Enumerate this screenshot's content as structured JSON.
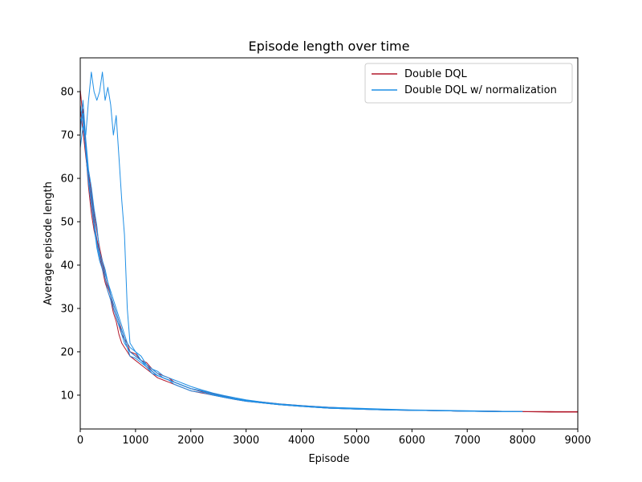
{
  "chart_data": {
    "type": "line",
    "title": "Episode length over time",
    "xlabel": "Episode",
    "ylabel": "Average episode length",
    "xlim": [
      0,
      9000
    ],
    "ylim": [
      2.2,
      87.8
    ],
    "xticks": [
      0,
      1000,
      2000,
      3000,
      4000,
      5000,
      6000,
      7000,
      8000,
      9000
    ],
    "yticks": [
      10,
      20,
      30,
      40,
      50,
      60,
      70,
      80
    ],
    "grid": false,
    "legend_position": "top-right",
    "series": [
      {
        "name": "Double DQL",
        "color": "#b2182b",
        "runs": [
          {
            "x": [
              0,
              50,
              100,
              150,
              200,
              250,
              300,
              350,
              400,
              450,
              500,
              550,
              600,
              650,
              700,
              750,
              800,
              850,
              900,
              1000,
              1100,
              1200,
              1300,
              1400,
              1500,
              1600,
              1700,
              1800,
              1900,
              2000,
              2200,
              2400,
              2600,
              2800,
              3000,
              3300,
              3600,
              4000,
              4500,
              5000,
              5500,
              6000,
              6500,
              7000,
              7500,
              8000,
              8500,
              9000
            ],
            "y": [
              80.5,
              74,
              66,
              58,
              52,
              48,
              45,
              42,
              39,
              36,
              34,
              32,
              29,
              27,
              24,
              22,
              21,
              20,
              19,
              18,
              17,
              16,
              15,
              14,
              13.5,
              13,
              12.5,
              12,
              11.5,
              11,
              10.5,
              10,
              9.5,
              9,
              8.6,
              8.2,
              7.8,
              7.4,
              7,
              6.8,
              6.6,
              6.5,
              6.4,
              6.3,
              6.2,
              6.2,
              6.1,
              6.1
            ]
          },
          {
            "x": [
              0,
              50,
              100,
              150,
              200,
              250,
              300,
              350,
              400,
              450,
              500,
              550,
              600,
              650,
              700,
              750,
              800,
              850,
              900,
              1000,
              1100,
              1200,
              1300,
              1400,
              1500,
              1600,
              1700,
              1800,
              1900,
              2000,
              2200,
              2400,
              2600,
              2800,
              3000,
              3300,
              3600,
              4000,
              4500,
              5000,
              5500,
              6000,
              6500,
              7000,
              7500,
              8000,
              8500,
              9000
            ],
            "y": [
              76,
              71,
              65,
              60,
              55,
              50,
              46,
              43,
              40,
              37,
              35,
              33,
              30,
              28,
              26,
              24,
              23,
              21,
              20,
              19,
              18,
              17,
              15.5,
              14.5,
              14,
              13.5,
              13,
              12.5,
              12,
              11.5,
              10.8,
              10.2,
              9.6,
              9.1,
              8.7,
              8.3,
              7.9,
              7.5,
              7.1,
              6.9,
              6.7,
              6.5,
              6.4,
              6.3,
              6.3,
              6.2,
              6.2,
              6.1
            ]
          },
          {
            "x": [
              0,
              50,
              100,
              150,
              200,
              250,
              300,
              350,
              400,
              450,
              500,
              550,
              600,
              650,
              700,
              750,
              800,
              850,
              900,
              1000,
              1100,
              1200,
              1300,
              1400,
              1500,
              1600,
              1700,
              1800,
              1900,
              2000,
              2200,
              2400,
              2600,
              2800,
              3000,
              3300,
              3600,
              4000,
              4500,
              5000,
              5500,
              6000,
              6500,
              7000,
              7500,
              8000,
              8500,
              9000
            ],
            "y": [
              72,
              76,
              68,
              61,
              57,
              52,
              48,
              44,
              41,
              38,
              36,
              33,
              31,
              29,
              27,
              25,
              23,
              22,
              20,
              19.5,
              18,
              17.5,
              16,
              15,
              14.5,
              14,
              13,
              12.5,
              12,
              11.5,
              11,
              10.4,
              9.8,
              9.2,
              8.8,
              8.4,
              8,
              7.6,
              7.2,
              6.9,
              6.7,
              6.5,
              6.4,
              6.3,
              6.3,
              6.2,
              6.2,
              6.2
            ]
          }
        ]
      },
      {
        "name": "Double DQL w/ normalization",
        "color": "#1f8fe5",
        "runs": [
          {
            "x": [
              0,
              50,
              100,
              150,
              200,
              250,
              300,
              350,
              400,
              450,
              500,
              550,
              600,
              650,
              700,
              750,
              800,
              850,
              900,
              1000,
              1100,
              1200,
              1300,
              1400,
              1500,
              1600,
              1700,
              1800,
              1900,
              2000,
              2200,
              2400,
              2600,
              2800,
              3000,
              3300,
              3600,
              4000,
              4500,
              5000,
              5500,
              6000,
              6500,
              7000,
              7500,
              8000
            ],
            "y": [
              67,
              72,
              70,
              78,
              84.5,
              80,
              78,
              80,
              84.5,
              78,
              81,
              77,
              70,
              74.5,
              65,
              55,
              47,
              30,
              22,
              20,
              18,
              17,
              16,
              15,
              14,
              13.5,
              13,
              12.5,
              12,
              11.5,
              11,
              10.3,
              9.7,
              9.2,
              8.8,
              8.3,
              7.9,
              7.5,
              7.1,
              6.9,
              6.7,
              6.5,
              6.4,
              6.3,
              6.3,
              6.2
            ]
          },
          {
            "x": [
              0,
              50,
              100,
              150,
              200,
              250,
              300,
              350,
              400,
              450,
              500,
              550,
              600,
              650,
              700,
              750,
              800,
              850,
              900,
              1000,
              1100,
              1200,
              1300,
              1400,
              1500,
              1600,
              1700,
              1800,
              1900,
              2000,
              2200,
              2400,
              2600,
              2800,
              3000,
              3300,
              3600,
              4000,
              4500,
              5000,
              5500,
              6000,
              6500,
              7000,
              7500,
              8000
            ],
            "y": [
              77,
              73,
              67,
              60,
              56,
              51,
              45,
              42,
              40,
              38,
              36,
              33,
              31,
              29,
              27,
              24,
              22,
              21,
              19,
              18.5,
              17.5,
              16.5,
              15.5,
              14.5,
              14,
              13.5,
              13,
              12.5,
              12,
              11.5,
              10.9,
              10.2,
              9.6,
              9.1,
              8.7,
              8.2,
              7.8,
              7.4,
              7,
              6.8,
              6.6,
              6.5,
              6.4,
              6.3,
              6.2,
              6.2
            ]
          },
          {
            "x": [
              0,
              50,
              100,
              150,
              200,
              250,
              300,
              350,
              400,
              450,
              500,
              550,
              600,
              650,
              700,
              750,
              800,
              850,
              900,
              1000,
              1100,
              1200,
              1300,
              1400,
              1500,
              1600,
              1700,
              1800,
              1900,
              2000,
              2200,
              2400,
              2600,
              2800,
              3000,
              3300,
              3600,
              4000,
              4500,
              5000,
              5500,
              6000,
              6500,
              7000,
              7500,
              8000
            ],
            "y": [
              70,
              78,
              69,
              62,
              58,
              53,
              49,
              43,
              41,
              39,
              36,
              34,
              32,
              30,
              28,
              26,
              24,
              22,
              21,
              20,
              19,
              17,
              16,
              15.5,
              14.5,
              14,
              13.5,
              13,
              12.5,
              12,
              11.2,
              10.5,
              9.9,
              9.4,
              8.9,
              8.4,
              8,
              7.6,
              7.2,
              7,
              6.8,
              6.6,
              6.5,
              6.4,
              6.3,
              6.2
            ]
          },
          {
            "x": [
              0,
              50,
              100,
              150,
              200,
              250,
              300,
              350,
              400,
              450,
              500,
              550,
              600,
              650,
              700,
              750,
              800,
              850,
              900,
              1000,
              1100,
              1200,
              1300,
              1400,
              1500,
              1600,
              1700,
              1800,
              1900,
              2000,
              2200,
              2400,
              2600,
              2800,
              3000,
              3300,
              3600,
              4000,
              4500,
              5000,
              5500,
              6000,
              6500,
              7000,
              7500,
              8000
            ],
            "y": [
              73,
              75,
              66,
              59,
              54,
              49,
              44,
              41,
              39,
              37,
              34,
              32,
              30,
              28,
              26,
              25,
              23,
              21,
              20,
              19,
              18,
              16.5,
              15,
              14.5,
              14,
              13.5,
              12.5,
              12,
              11.5,
              11,
              10.6,
              10,
              9.5,
              9,
              8.6,
              8.2,
              7.8,
              7.4,
              7,
              6.8,
              6.6,
              6.5,
              6.4,
              6.3,
              6.2,
              6.2
            ]
          }
        ]
      }
    ]
  }
}
